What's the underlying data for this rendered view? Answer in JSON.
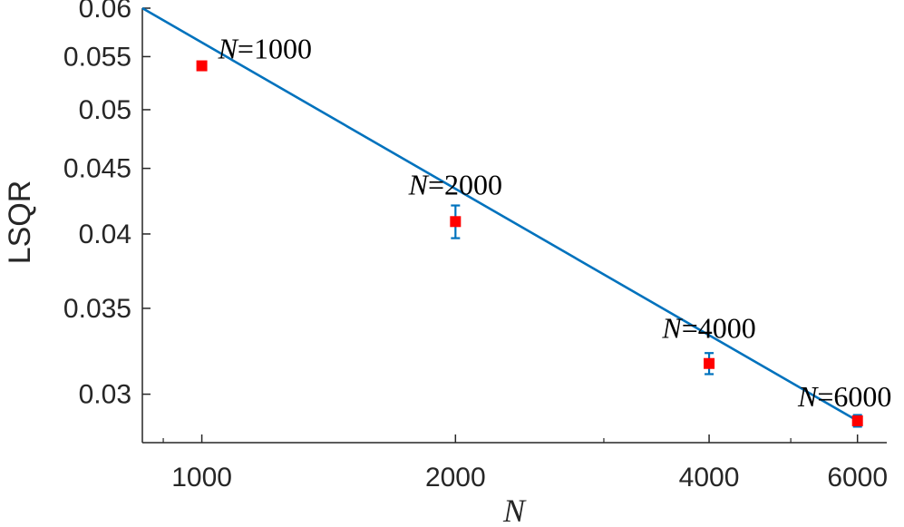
{
  "chart_data": {
    "type": "line",
    "title": "",
    "xlabel": "N",
    "ylabel": "LSQR",
    "xscale": "log",
    "yscale": "log",
    "xlim": [
      850,
      6500
    ],
    "ylim": [
      0.0275,
      0.06
    ],
    "xticks": [
      1000,
      2000,
      4000,
      6000
    ],
    "xtick_labels": [
      "1000",
      "2000",
      "4000",
      "6000"
    ],
    "yticks": [
      0.03,
      0.035,
      0.04,
      0.045,
      0.05,
      0.055,
      0.06
    ],
    "ytick_labels": [
      "0.03",
      "0.035",
      "0.04",
      "0.045",
      "0.05",
      "0.055",
      "0.06"
    ],
    "grid": false,
    "series": [
      {
        "kind": "fit-line",
        "color": "#0072BD",
        "points": [
          {
            "x": 850,
            "y": 0.06
          },
          {
            "x": 6000,
            "y": 0.0286
          }
        ]
      },
      {
        "kind": "markers-with-errorbars",
        "marker_color": "#ff0000",
        "errorbar_color": "#0072BD",
        "points": [
          {
            "x": 1000,
            "y": 0.0541,
            "err_low": 0.0538,
            "err_high": 0.0544,
            "label_var": "N",
            "label_eq": "=1000"
          },
          {
            "x": 2000,
            "y": 0.0409,
            "err_low": 0.0397,
            "err_high": 0.0421,
            "label_var": "N",
            "label_eq": "=2000"
          },
          {
            "x": 4000,
            "y": 0.0317,
            "err_low": 0.0311,
            "err_high": 0.0323,
            "label_var": "N",
            "label_eq": "=4000"
          },
          {
            "x": 6000,
            "y": 0.0286,
            "err_low": 0.0283,
            "err_high": 0.0289,
            "label_var": "N",
            "label_eq": "=6000"
          }
        ]
      }
    ]
  }
}
